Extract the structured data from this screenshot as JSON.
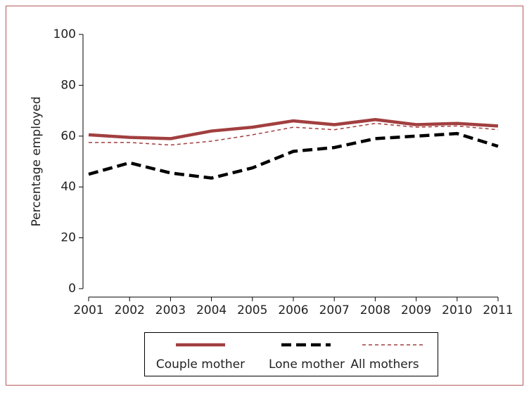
{
  "chart_data": {
    "type": "line",
    "ylabel": "Percentage employed",
    "x": [
      2001,
      2002,
      2003,
      2004,
      2005,
      2006,
      2007,
      2008,
      2009,
      2010,
      2011
    ],
    "xlim": [
      2001,
      2011
    ],
    "xticks": [
      2001,
      2002,
      2003,
      2004,
      2005,
      2006,
      2007,
      2008,
      2009,
      2010,
      2011
    ],
    "ylim": [
      0,
      100
    ],
    "yticks": [
      0,
      20,
      40,
      60,
      80,
      100
    ],
    "grid": false,
    "legend": "bottom",
    "series": [
      {
        "name": "Couple mother",
        "color": "#a23f3f",
        "linestyle": "solid",
        "values": [
          60.5,
          59.5,
          59,
          62,
          63.5,
          66,
          64.5,
          66.5,
          64.5,
          65,
          64
        ]
      },
      {
        "name": "Lone mother",
        "color": "#000000",
        "linestyle": "dash",
        "values": [
          45,
          49.5,
          45.5,
          43.5,
          47.5,
          54,
          55.5,
          59,
          60,
          61,
          56
        ]
      },
      {
        "name": "All mothers",
        "color": "#a23f3f",
        "linestyle": "shortdash",
        "values": [
          57.5,
          57.5,
          56.5,
          58,
          60.5,
          63.5,
          62.5,
          65,
          63.5,
          64,
          62.5
        ]
      }
    ]
  }
}
